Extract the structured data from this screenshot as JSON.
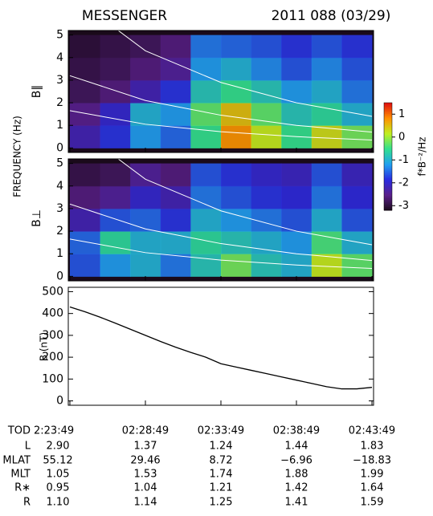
{
  "chart_data": [
    {
      "type": "heatmap",
      "title": "MESSENGER",
      "subtitle": "2011 088 (03/29)",
      "ylabel": "FREQUENCY (Hz)",
      "panel_label": "B∥",
      "time_bins": [
        "02:23:49",
        "02:25:49",
        "02:27:49",
        "02:29:49",
        "02:31:49",
        "02:33:49",
        "02:35:49",
        "02:37:49",
        "02:39:49",
        "02:41:49",
        "02:43:49"
      ],
      "freq_bins": [
        0,
        1,
        2,
        3,
        4,
        5
      ],
      "z": [
        [
          -2.2,
          -1.8,
          -1.2,
          -1.5,
          -0.5,
          0.8,
          0.2,
          -0.5,
          0.3,
          -0.2
        ],
        [
          -2.5,
          -2.0,
          -1.0,
          -1.2,
          -0.3,
          0.5,
          -0.3,
          -0.8,
          -0.6,
          -1.0
        ],
        [
          -2.8,
          -2.6,
          -2.2,
          -1.8,
          -0.8,
          -0.5,
          -0.8,
          -1.2,
          -1.0,
          -1.4
        ],
        [
          -2.9,
          -2.8,
          -2.6,
          -2.4,
          -1.2,
          -1.0,
          -1.3,
          -1.6,
          -1.3,
          -1.6
        ],
        [
          -3.0,
          -2.9,
          -2.8,
          -2.6,
          -1.4,
          -1.5,
          -1.6,
          -1.8,
          -1.6,
          -1.8
        ]
      ],
      "zlim": [
        -3.2,
        1.5
      ],
      "zticks": [
        1,
        0,
        -1,
        -2,
        -3
      ],
      "colorbar_label": "f*B⁻²/Hz",
      "colormap": [
        "#1a0a1a",
        "#5a1f8a",
        "#2a2ae0",
        "#20a0f0",
        "#30e090",
        "#c0f020",
        "#ff9000",
        "#e01010"
      ],
      "ylim": [
        -0.2,
        5.2
      ],
      "yticks": [
        0,
        1,
        2,
        3,
        4,
        5
      ],
      "lines_x": [
        "02:23:49",
        "02:28:49",
        "02:33:49",
        "02:38:49",
        "02:43:49"
      ],
      "lines": [
        [
          6.8,
          4.3,
          2.9,
          2.0,
          1.4
        ],
        [
          3.2,
          2.1,
          1.45,
          1.0,
          0.7
        ],
        [
          1.65,
          1.05,
          0.72,
          0.5,
          0.35
        ]
      ]
    },
    {
      "type": "heatmap",
      "panel_label": "B⊥",
      "time_bins": [
        "02:23:49",
        "02:25:49",
        "02:27:49",
        "02:29:49",
        "02:31:49",
        "02:33:49",
        "02:35:49",
        "02:37:49",
        "02:39:49",
        "02:41:49",
        "02:43:49"
      ],
      "freq_bins": [
        0,
        1,
        2,
        3,
        4,
        5
      ],
      "z": [
        [
          -1.6,
          -1.2,
          -1.0,
          -1.4,
          -0.8,
          -0.2,
          -0.8,
          -1.0,
          0.2,
          -0.3
        ],
        [
          -1.5,
          -0.6,
          -1.0,
          -1.0,
          -0.6,
          -0.8,
          -1.0,
          -1.2,
          -0.4,
          -1.0
        ],
        [
          -2.2,
          -1.6,
          -1.5,
          -1.8,
          -1.0,
          -1.2,
          -1.4,
          -1.6,
          -1.0,
          -1.6
        ],
        [
          -2.6,
          -2.4,
          -2.0,
          -2.2,
          -1.4,
          -1.6,
          -1.8,
          -1.9,
          -1.4,
          -1.9
        ],
        [
          -2.9,
          -2.8,
          -2.4,
          -2.6,
          -1.6,
          -1.8,
          -2.0,
          -2.1,
          -1.6,
          -2.1
        ]
      ],
      "ylim": [
        -0.2,
        5.2
      ],
      "yticks": [
        0,
        1,
        2,
        3,
        4,
        5
      ],
      "lines_x": [
        "02:23:49",
        "02:28:49",
        "02:33:49",
        "02:38:49",
        "02:43:49"
      ],
      "lines": [
        [
          6.8,
          4.3,
          2.9,
          2.0,
          1.4
        ],
        [
          3.2,
          2.1,
          1.45,
          1.0,
          0.7
        ],
        [
          1.65,
          1.05,
          0.72,
          0.5,
          0.35
        ]
      ]
    },
    {
      "type": "line",
      "ylabel": "B (nT)",
      "color": "#000000",
      "x": [
        "02:23:49",
        "02:24:49",
        "02:25:49",
        "02:26:49",
        "02:27:49",
        "02:28:49",
        "02:29:49",
        "02:30:49",
        "02:31:49",
        "02:32:49",
        "02:33:49",
        "02:34:49",
        "02:35:49",
        "02:36:49",
        "02:37:49",
        "02:38:49",
        "02:39:49",
        "02:40:49",
        "02:41:49",
        "02:42:49",
        "02:43:49"
      ],
      "values": [
        430,
        408,
        383,
        356,
        328,
        300,
        272,
        246,
        222,
        200,
        170,
        155,
        140,
        125,
        110,
        95,
        80,
        65,
        55,
        55,
        62
      ],
      "ylim": [
        -20,
        520
      ],
      "yticks": [
        0,
        100,
        200,
        300,
        400,
        500
      ],
      "xlim": [
        "02:23:49",
        "02:43:49"
      ]
    }
  ],
  "ephemeris": {
    "rows": [
      {
        "label": "TOD",
        "values": [
          "2:23:49",
          "02:28:49",
          "02:33:49",
          "02:38:49",
          "02:43:49"
        ]
      },
      {
        "label": "L",
        "values": [
          "2.90",
          "1.37",
          "1.24",
          "1.44",
          "1.83"
        ]
      },
      {
        "label": "MLAT",
        "values": [
          "55.12",
          "29.46",
          "8.72",
          "−6.96",
          "−18.83"
        ]
      },
      {
        "label": "MLT",
        "values": [
          "1.05",
          "1.53",
          "1.74",
          "1.88",
          "1.99"
        ]
      },
      {
        "label": "R∗",
        "values": [
          "0.95",
          "1.04",
          "1.21",
          "1.42",
          "1.64"
        ]
      },
      {
        "label": "R",
        "values": [
          "1.10",
          "1.14",
          "1.25",
          "1.41",
          "1.59"
        ]
      }
    ]
  }
}
